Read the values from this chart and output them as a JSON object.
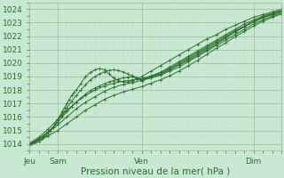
{
  "title": "",
  "xlabel": "Pression niveau de la mer( hPa )",
  "ylabel": "",
  "bg_color": "#c8e8d4",
  "plot_bg_color": "#c8e8d4",
  "grid_color": "#99bb99",
  "grid_color_minor": "#bbddbb",
  "line_color": "#2d6e2d",
  "ylim": [
    1013.5,
    1024.5
  ],
  "xlim": [
    0,
    108
  ],
  "yticks": [
    1014,
    1015,
    1016,
    1017,
    1018,
    1019,
    1020,
    1021,
    1022,
    1023,
    1024
  ],
  "xtick_positions": [
    0,
    12,
    48,
    96
  ],
  "xtick_labels": [
    "Jeu",
    "Sam",
    "Ven",
    "Dim"
  ],
  "lines": [
    {
      "x": [
        0,
        1,
        2,
        3,
        4,
        5,
        6,
        7,
        8,
        9,
        10,
        11,
        12,
        13,
        14,
        15,
        16,
        17,
        18,
        19,
        20,
        22,
        24,
        26,
        28,
        30,
        32,
        34,
        36,
        38,
        40,
        42,
        44,
        46,
        48,
        52,
        56,
        60,
        64,
        68,
        72,
        76,
        80,
        84,
        88,
        92,
        96,
        100,
        104,
        108
      ],
      "y": [
        1014.0,
        1014.05,
        1014.1,
        1014.2,
        1014.3,
        1014.4,
        1014.5,
        1014.65,
        1014.8,
        1015.0,
        1015.2,
        1015.5,
        1015.8,
        1016.1,
        1016.4,
        1016.7,
        1017.0,
        1017.3,
        1017.6,
        1017.8,
        1018.0,
        1018.5,
        1019.0,
        1019.3,
        1019.5,
        1019.6,
        1019.5,
        1019.2,
        1018.9,
        1018.7,
        1018.6,
        1018.6,
        1018.7,
        1018.8,
        1019.0,
        1019.4,
        1019.8,
        1020.2,
        1020.6,
        1021.0,
        1021.4,
        1021.8,
        1022.1,
        1022.5,
        1022.8,
        1023.1,
        1023.4,
        1023.6,
        1023.8,
        1024.0
      ]
    },
    {
      "x": [
        0,
        2,
        4,
        6,
        8,
        10,
        12,
        14,
        16,
        18,
        20,
        22,
        24,
        26,
        28,
        30,
        32,
        34,
        36,
        38,
        40,
        42,
        44,
        46,
        48,
        52,
        56,
        60,
        64,
        68,
        72,
        76,
        80,
        84,
        88,
        92,
        96,
        100,
        104,
        108
      ],
      "y": [
        1014.0,
        1014.15,
        1014.35,
        1014.6,
        1014.9,
        1015.25,
        1015.6,
        1016.0,
        1016.4,
        1016.75,
        1017.1,
        1017.4,
        1017.7,
        1017.95,
        1018.15,
        1018.3,
        1018.45,
        1018.6,
        1018.7,
        1018.8,
        1018.9,
        1018.95,
        1019.0,
        1018.85,
        1018.7,
        1019.0,
        1019.3,
        1019.7,
        1020.1,
        1020.5,
        1020.9,
        1021.3,
        1021.7,
        1022.1,
        1022.5,
        1022.9,
        1023.2,
        1023.5,
        1023.7,
        1023.9
      ]
    },
    {
      "x": [
        0,
        4,
        8,
        12,
        16,
        20,
        24,
        28,
        32,
        36,
        40,
        44,
        48,
        52,
        56,
        60,
        64,
        68,
        72,
        76,
        80,
        84,
        88,
        92,
        96,
        100,
        104,
        108
      ],
      "y": [
        1014.0,
        1014.4,
        1014.9,
        1015.4,
        1016.0,
        1016.6,
        1017.1,
        1017.5,
        1017.9,
        1018.2,
        1018.4,
        1018.55,
        1018.7,
        1018.9,
        1019.1,
        1019.4,
        1019.7,
        1020.1,
        1020.5,
        1020.9,
        1021.3,
        1021.7,
        1022.1,
        1022.5,
        1022.9,
        1023.2,
        1023.5,
        1023.7
      ]
    },
    {
      "x": [
        0,
        4,
        8,
        12,
        16,
        20,
        24,
        28,
        32,
        36,
        40,
        44,
        48,
        52,
        56,
        60,
        64,
        68,
        72,
        76,
        80,
        84,
        88,
        92,
        96,
        100,
        104,
        108
      ],
      "y": [
        1013.9,
        1014.2,
        1014.6,
        1015.0,
        1015.5,
        1016.0,
        1016.5,
        1016.9,
        1017.3,
        1017.6,
        1017.85,
        1018.05,
        1018.25,
        1018.5,
        1018.75,
        1019.05,
        1019.4,
        1019.8,
        1020.2,
        1020.65,
        1021.1,
        1021.5,
        1021.95,
        1022.35,
        1022.75,
        1023.1,
        1023.4,
        1023.65
      ]
    },
    {
      "x": [
        0,
        4,
        8,
        12,
        16,
        20,
        24,
        28,
        32,
        36,
        40,
        44,
        48,
        52,
        56,
        60,
        64,
        68,
        72,
        76,
        80,
        84,
        88,
        92,
        96,
        100,
        104,
        108
      ],
      "y": [
        1014.05,
        1014.5,
        1015.1,
        1015.8,
        1016.5,
        1017.1,
        1017.6,
        1018.0,
        1018.3,
        1018.5,
        1018.65,
        1018.75,
        1018.85,
        1019.0,
        1019.2,
        1019.5,
        1019.85,
        1020.2,
        1020.6,
        1021.0,
        1021.4,
        1021.85,
        1022.3,
        1022.7,
        1023.1,
        1023.4,
        1023.65,
        1023.85
      ]
    },
    {
      "x": [
        12,
        14,
        16,
        18,
        20,
        22,
        24,
        26,
        28,
        30,
        32,
        34,
        36,
        38,
        40,
        42,
        44,
        46,
        48,
        52,
        56,
        60,
        64,
        68,
        72,
        76,
        80,
        84,
        88,
        92,
        96,
        100,
        104,
        108
      ],
      "y": [
        1015.8,
        1016.2,
        1016.7,
        1017.15,
        1017.6,
        1018.0,
        1018.4,
        1018.75,
        1019.0,
        1019.2,
        1019.35,
        1019.45,
        1019.5,
        1019.45,
        1019.35,
        1019.2,
        1019.05,
        1018.9,
        1018.75,
        1018.9,
        1019.15,
        1019.5,
        1019.9,
        1020.3,
        1020.7,
        1021.1,
        1021.5,
        1021.9,
        1022.3,
        1022.7,
        1023.05,
        1023.35,
        1023.6,
        1023.8
      ]
    },
    {
      "x": [
        48,
        52,
        56,
        60,
        64,
        68,
        72,
        76,
        80,
        84,
        88,
        92,
        96,
        100,
        104,
        108
      ],
      "y": [
        1018.8,
        1019.05,
        1019.3,
        1019.6,
        1020.0,
        1020.4,
        1020.8,
        1021.2,
        1021.6,
        1022.0,
        1022.4,
        1022.75,
        1023.1,
        1023.4,
        1023.65,
        1023.85
      ]
    }
  ],
  "marker": "+",
  "markersize": 2.5,
  "linewidth": 0.7,
  "fontsize_ticks": 6.5,
  "fontsize_xlabel": 7.5
}
